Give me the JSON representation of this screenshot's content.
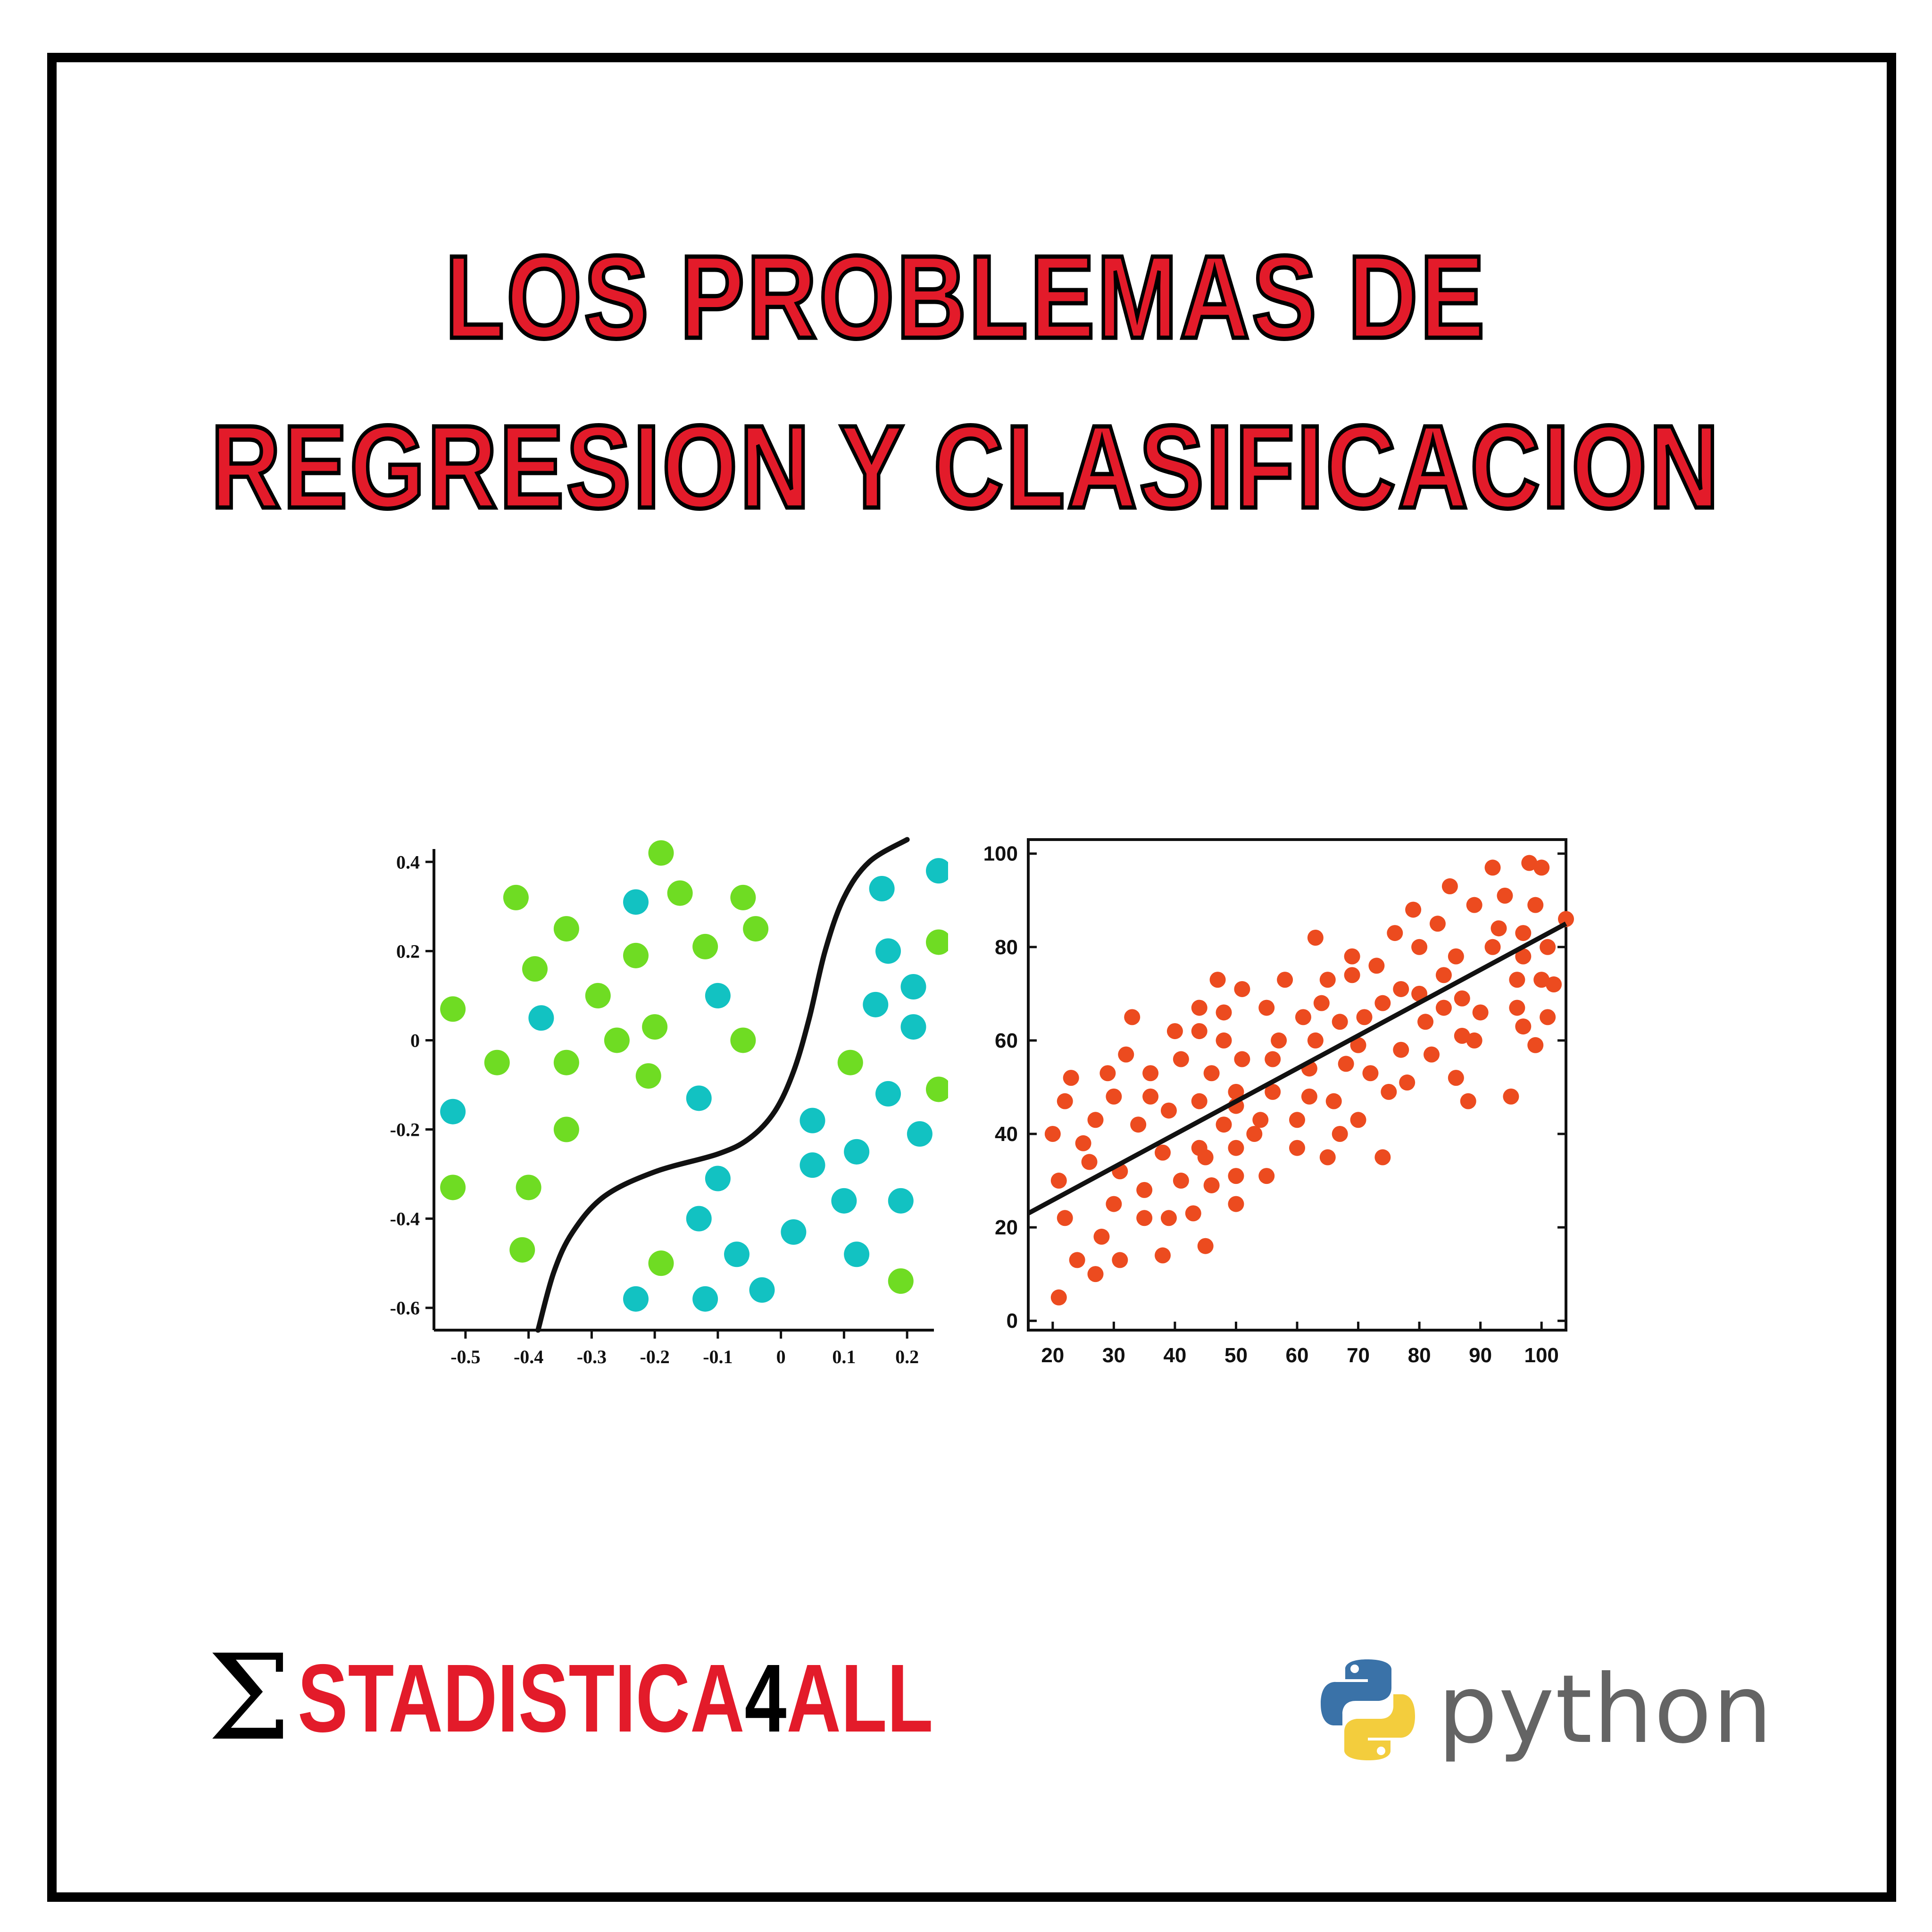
{
  "title": {
    "line1": "LOS PROBLEMAS DE",
    "line2": "REGRESION Y CLASIFICACION"
  },
  "colors": {
    "title_red": "#e31b2a",
    "class_green": "#6fdc23",
    "class_teal": "#12c2c2",
    "regression_dots": "#ec4b1f",
    "python_blue": "#3a72a8",
    "python_yellow": "#f3cd3d",
    "python_gray": "#646464"
  },
  "brand": {
    "sigma": "Σ",
    "part1": "STADISTICA",
    "part2": "4",
    "part3": "ALL"
  },
  "python_logo": {
    "text": "python",
    "icon": "python-snake-icon"
  },
  "chart_data": [
    {
      "type": "scatter",
      "title": "",
      "xlabel": "",
      "ylabel": "",
      "xlim": [
        -0.55,
        0.25
      ],
      "ylim": [
        -0.65,
        0.45
      ],
      "xticks": [
        -0.5,
        -0.4,
        -0.3,
        -0.2,
        -0.1,
        0,
        0.1,
        0.2
      ],
      "xtick_labels": [
        "-0.5",
        "-0.4",
        "-0.3",
        "-0.2",
        "-0.1",
        "0",
        "0.1",
        "0.2"
      ],
      "yticks": [
        0.4,
        0.2,
        0,
        -0.2,
        -0.4,
        -0.6
      ],
      "ytick_labels": [
        "0.4",
        "0.2",
        "0",
        "-0.2",
        "-0.4",
        "-0.6"
      ],
      "grid": false,
      "series": [
        {
          "color": "#6fdc23",
          "points": [
            [
              -0.19,
              0.42
            ],
            [
              -0.42,
              0.32
            ],
            [
              -0.16,
              0.33
            ],
            [
              -0.06,
              0.32
            ],
            [
              -0.34,
              0.25
            ],
            [
              -0.04,
              0.25
            ],
            [
              -0.12,
              0.21
            ],
            [
              -0.23,
              0.19
            ],
            [
              -0.39,
              0.16
            ],
            [
              -0.29,
              0.1
            ],
            [
              -0.52,
              0.07
            ],
            [
              -0.2,
              0.03
            ],
            [
              -0.26,
              0.0
            ],
            [
              -0.45,
              -0.05
            ],
            [
              -0.34,
              -0.05
            ],
            [
              -0.06,
              0.0
            ],
            [
              -0.21,
              -0.08
            ],
            [
              0.11,
              -0.05
            ],
            [
              0.25,
              0.22
            ],
            [
              0.25,
              -0.11
            ],
            [
              -0.34,
              -0.2
            ],
            [
              -0.52,
              -0.33
            ],
            [
              -0.4,
              -0.33
            ],
            [
              -0.41,
              -0.47
            ],
            [
              -0.19,
              -0.5
            ],
            [
              0.19,
              -0.54
            ]
          ]
        },
        {
          "color": "#12c2c2",
          "points": [
            [
              -0.23,
              0.31
            ],
            [
              0.16,
              0.34
            ],
            [
              0.25,
              0.38
            ],
            [
              0.17,
              0.2
            ],
            [
              0.21,
              0.12
            ],
            [
              -0.38,
              0.05
            ],
            [
              -0.1,
              0.1
            ],
            [
              0.15,
              0.08
            ],
            [
              0.21,
              0.03
            ],
            [
              -0.52,
              -0.16
            ],
            [
              -0.13,
              -0.13
            ],
            [
              0.17,
              -0.12
            ],
            [
              0.05,
              -0.18
            ],
            [
              0.22,
              -0.21
            ],
            [
              0.05,
              -0.28
            ],
            [
              0.12,
              -0.25
            ],
            [
              -0.1,
              -0.31
            ],
            [
              0.1,
              -0.36
            ],
            [
              0.19,
              -0.36
            ],
            [
              -0.13,
              -0.4
            ],
            [
              0.02,
              -0.43
            ],
            [
              -0.07,
              -0.48
            ],
            [
              0.12,
              -0.48
            ],
            [
              -0.23,
              -0.58
            ],
            [
              -0.12,
              -0.58
            ],
            [
              -0.03,
              -0.56
            ]
          ]
        }
      ],
      "boundary_curve": [
        [
          -0.385,
          -0.65
        ],
        [
          -0.36,
          -0.52
        ],
        [
          -0.33,
          -0.43
        ],
        [
          -0.28,
          -0.35
        ],
        [
          -0.2,
          -0.295
        ],
        [
          -0.1,
          -0.255
        ],
        [
          -0.05,
          -0.22
        ],
        [
          -0.01,
          -0.16
        ],
        [
          0.02,
          -0.07
        ],
        [
          0.045,
          0.05
        ],
        [
          0.07,
          0.2
        ],
        [
          0.1,
          0.32
        ],
        [
          0.14,
          0.4
        ],
        [
          0.2,
          0.45
        ]
      ]
    },
    {
      "type": "scatter",
      "title": "",
      "xlabel": "",
      "ylabel": "",
      "xlim": [
        16,
        104
      ],
      "ylim": [
        -2,
        103
      ],
      "xticks": [
        20,
        30,
        40,
        50,
        60,
        70,
        80,
        90,
        100
      ],
      "xtick_labels": [
        "20",
        "30",
        "40",
        "50",
        "60",
        "70",
        "80",
        "90",
        "100"
      ],
      "yticks": [
        0,
        20,
        40,
        60,
        80,
        100
      ],
      "ytick_labels": [
        "0",
        "20",
        "40",
        "60",
        "80",
        "100"
      ],
      "grid": false,
      "series": [
        {
          "color": "#ec4b1f",
          "points": [
            [
              20,
              40
            ],
            [
              21,
              5
            ],
            [
              21,
              30
            ],
            [
              22,
              22
            ],
            [
              22,
              47
            ],
            [
              23,
              52
            ],
            [
              24,
              13
            ],
            [
              25,
              38
            ],
            [
              26,
              34
            ],
            [
              27,
              10
            ],
            [
              27,
              43
            ],
            [
              28,
              18
            ],
            [
              29,
              53
            ],
            [
              30,
              25
            ],
            [
              30,
              48
            ],
            [
              31,
              13
            ],
            [
              31,
              32
            ],
            [
              32,
              57
            ],
            [
              33,
              65
            ],
            [
              34,
              42
            ],
            [
              35,
              22
            ],
            [
              35,
              28
            ],
            [
              36,
              48
            ],
            [
              36,
              53
            ],
            [
              38,
              14
            ],
            [
              38,
              36
            ],
            [
              39,
              22
            ],
            [
              39,
              45
            ],
            [
              40,
              62
            ],
            [
              41,
              30
            ],
            [
              41,
              56
            ],
            [
              43,
              23
            ],
            [
              44,
              37
            ],
            [
              44,
              47
            ],
            [
              44,
              62
            ],
            [
              44,
              67
            ],
            [
              45,
              16
            ],
            [
              45,
              35
            ],
            [
              46,
              29
            ],
            [
              46,
              53
            ],
            [
              47,
              73
            ],
            [
              48,
              42
            ],
            [
              48,
              60
            ],
            [
              48,
              66
            ],
            [
              50,
              25
            ],
            [
              50,
              31
            ],
            [
              50,
              37
            ],
            [
              50,
              46
            ],
            [
              50,
              49
            ],
            [
              51,
              56
            ],
            [
              51,
              71
            ],
            [
              53,
              40
            ],
            [
              54,
              43
            ],
            [
              55,
              67
            ],
            [
              55,
              31
            ],
            [
              56,
              49
            ],
            [
              56,
              56
            ],
            [
              57,
              60
            ],
            [
              58,
              73
            ],
            [
              60,
              37
            ],
            [
              60,
              43
            ],
            [
              61,
              65
            ],
            [
              62,
              48
            ],
            [
              62,
              54
            ],
            [
              63,
              82
            ],
            [
              63,
              60
            ],
            [
              64,
              68
            ],
            [
              65,
              35
            ],
            [
              65,
              73
            ],
            [
              66,
              47
            ],
            [
              67,
              64
            ],
            [
              67,
              40
            ],
            [
              68,
              55
            ],
            [
              69,
              74
            ],
            [
              69,
              78
            ],
            [
              70,
              43
            ],
            [
              70,
              59
            ],
            [
              71,
              65
            ],
            [
              72,
              53
            ],
            [
              73,
              76
            ],
            [
              74,
              35
            ],
            [
              74,
              68
            ],
            [
              75,
              49
            ],
            [
              76,
              83
            ],
            [
              77,
              58
            ],
            [
              77,
              71
            ],
            [
              78,
              51
            ],
            [
              79,
              88
            ],
            [
              80,
              80
            ],
            [
              80,
              70
            ],
            [
              81,
              64
            ],
            [
              82,
              57
            ],
            [
              83,
              85
            ],
            [
              84,
              74
            ],
            [
              84,
              67
            ],
            [
              85,
              93
            ],
            [
              86,
              78
            ],
            [
              86,
              52
            ],
            [
              87,
              61
            ],
            [
              87,
              69
            ],
            [
              88,
              47
            ],
            [
              89,
              89
            ],
            [
              89,
              60
            ],
            [
              90,
              66
            ],
            [
              92,
              80
            ],
            [
              92,
              97
            ],
            [
              93,
              84
            ],
            [
              94,
              91
            ],
            [
              95,
              48
            ],
            [
              96,
              67
            ],
            [
              96,
              73
            ],
            [
              97,
              78
            ],
            [
              97,
              63
            ],
            [
              97,
              83
            ],
            [
              98,
              98
            ],
            [
              99,
              59
            ],
            [
              99,
              89
            ],
            [
              100,
              73
            ],
            [
              100,
              97
            ],
            [
              101,
              65
            ],
            [
              101,
              80
            ],
            [
              102,
              72
            ],
            [
              104,
              86
            ]
          ]
        }
      ],
      "regression_line": {
        "x": [
          16,
          104
        ],
        "y": [
          23,
          85
        ]
      }
    }
  ]
}
